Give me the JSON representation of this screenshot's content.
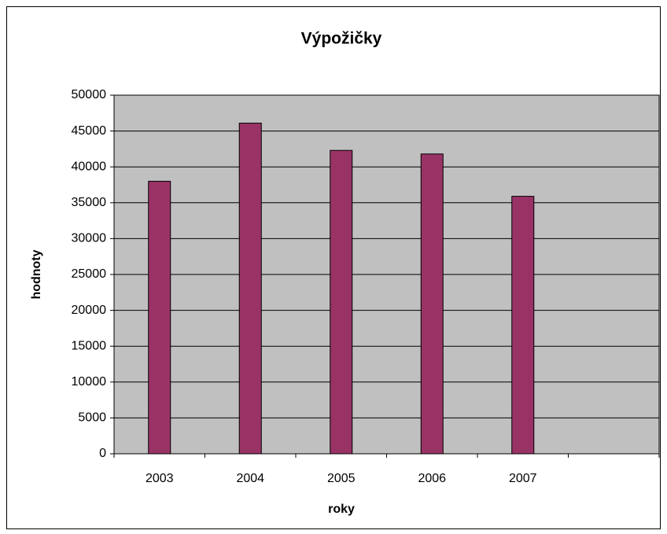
{
  "chart_data": {
    "type": "bar",
    "title": "Výpožičky",
    "x_label": "roky",
    "y_label": "hodnoty",
    "categories": [
      "2003",
      "2004",
      "2005",
      "2006",
      "2007",
      null
    ],
    "values": [
      38000,
      46100,
      42300,
      41800,
      35900,
      null
    ],
    "color": "#993366",
    "background": "#c0c0c0",
    "ylim": [
      0,
      50000
    ],
    "yticks": [
      0,
      5000,
      10000,
      15000,
      20000,
      25000,
      30000,
      35000,
      40000,
      45000,
      50000
    ],
    "grid": true
  }
}
